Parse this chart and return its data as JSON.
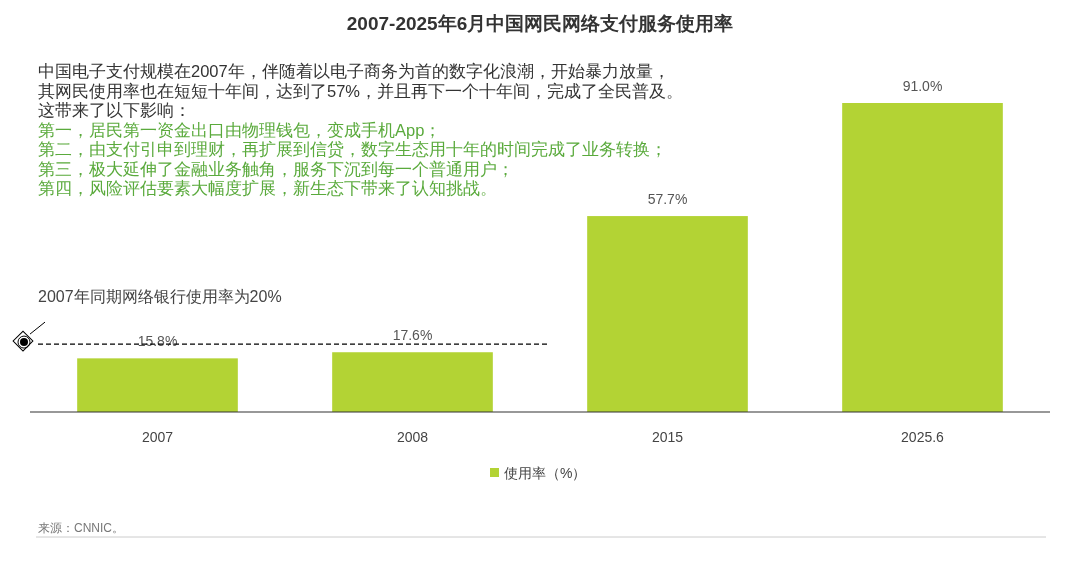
{
  "chart_data": {
    "type": "bar",
    "title": "2007-2025年6月中国网民网络支付服务使用率",
    "categories": [
      "2007",
      "2008",
      "2015",
      "2025.6"
    ],
    "series": [
      {
        "name": "使用率（%）",
        "color": "#b3d334",
        "values": [
          15.8,
          17.6,
          57.7,
          91.0
        ],
        "value_labels": [
          "15.8%",
          "17.6%",
          "57.7%",
          "91.0%"
        ]
      }
    ],
    "ref_lines": [
      {
        "axis": "y",
        "value": 20,
        "label": "2007年同期网络银行使用率为20%",
        "color": "#000000",
        "line_style": "dashed"
      }
    ],
    "legend": "bottom",
    "annotations": [
      "中国电子支付规模在2007年，伴随着以电子商务为首的数字化浪潮，开始暴力放量，",
      "其网民使用率也在短短十年间，达到了57%，并且再下一个十年间，完成了全民普及。",
      "这带来了以下影响：",
      "第一，居民第一资金出口由物理钱包，变成手机App；",
      "第二，由支付引申到理财，再扩展到信贷，数字生态用十年的时间完成了业务转换；",
      "第三，极大延伸了金融业务触角，服务下沉到每一个普通用户；",
      "第四，风险评估要素大幅度扩展，新生态下带来了认知挑战。",
      "来源：CNNIC。"
    ]
  }
}
